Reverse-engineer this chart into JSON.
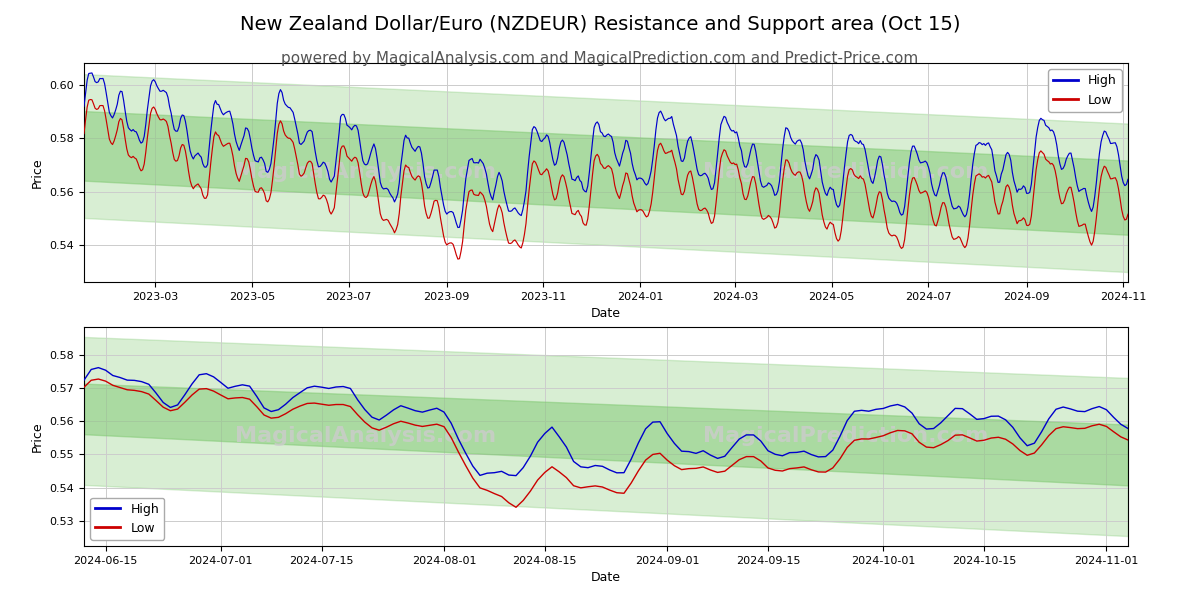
{
  "title": "New Zealand Dollar/Euro (NZDEUR) Resistance and Support area (Oct 15)",
  "subtitle": "powered by MagicalAnalysis.com and MagicalPrediction.com and Predict-Price.com",
  "ylabel": "Price",
  "xlabel": "Date",
  "watermark1": "MagicalAnalysis.com",
  "watermark2": "MagicalPrediction.com",
  "high_color": "#0000cc",
  "low_color": "#cc0000",
  "band_color": "#7ec870",
  "band_alpha_outer": 0.3,
  "band_alpha_inner": 0.5,
  "background_color": "#ffffff",
  "grid_color": "#cccccc",
  "title_fontsize": 14,
  "subtitle_fontsize": 11,
  "watermark_fontsize": 16,
  "watermark_color": "#cccccc"
}
